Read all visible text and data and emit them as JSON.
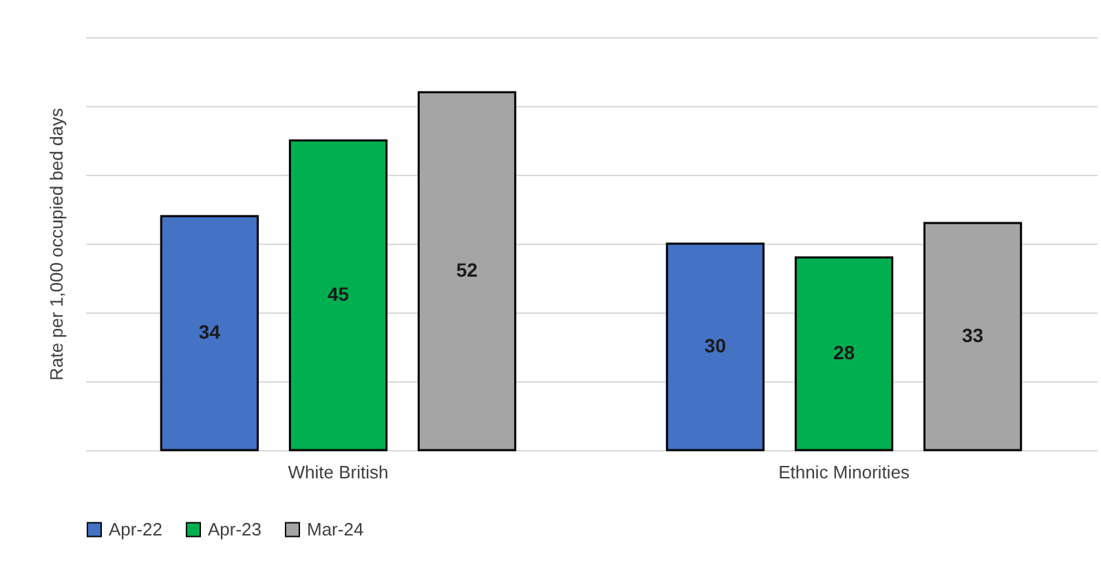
{
  "chart_data": {
    "type": "bar",
    "ylabel": "Rate per 1,000 occupied bed days",
    "categories": [
      "White British",
      "Ethnic Minorities"
    ],
    "series": [
      {
        "name": "Apr-22",
        "color": "#4472c4",
        "values": [
          34,
          30
        ]
      },
      {
        "name": "Apr-23",
        "color": "#00b050",
        "values": [
          45,
          28
        ]
      },
      {
        "name": "Mar-24",
        "color": "#a5a5a5",
        "values": [
          52,
          33
        ]
      }
    ],
    "ylim": [
      0,
      60
    ],
    "yticks": [
      {
        "value": 0,
        "label": null
      },
      {
        "value": 10,
        "label": null
      },
      {
        "value": 20,
        "label": null
      },
      {
        "value": 30,
        "label": null
      },
      {
        "value": 40,
        "label": null
      },
      {
        "value": 50,
        "label": null
      },
      {
        "value": 60,
        "label": null
      }
    ],
    "tick_labels": "x",
    "grid": "y",
    "legend": "bottom",
    "data_labels": true
  }
}
